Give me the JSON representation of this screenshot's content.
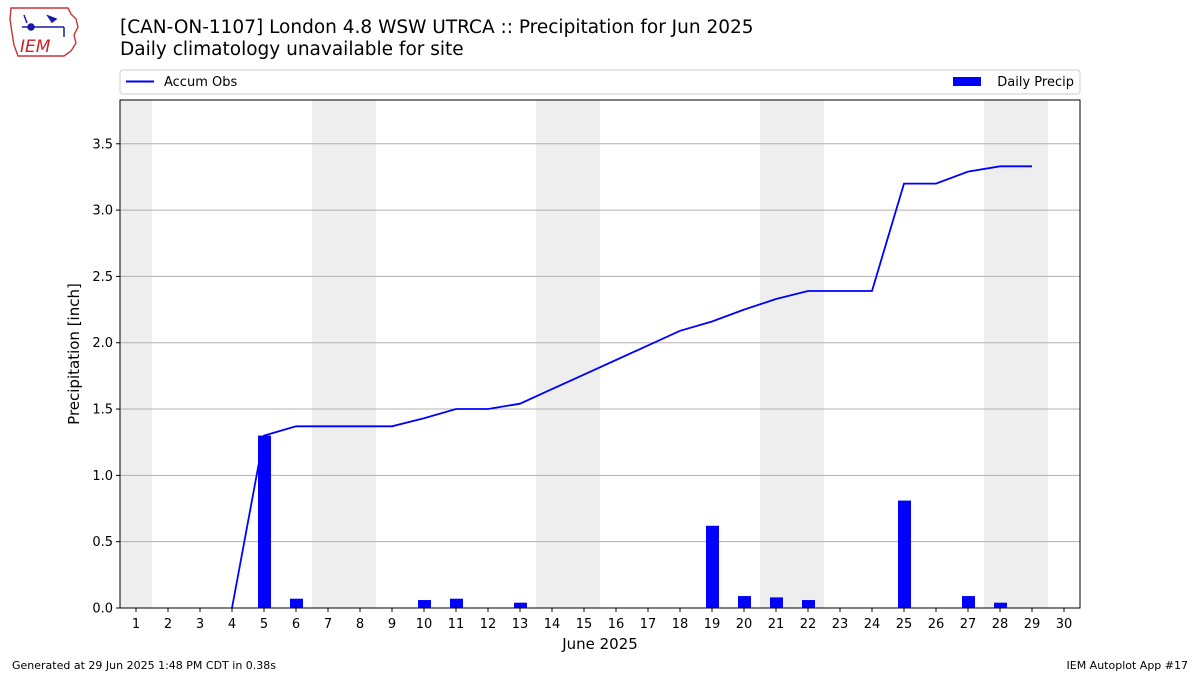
{
  "header": {
    "logo_text": "IEM",
    "title": "[CAN-ON-1107] London 4.8 WSW UTRCA :: Precipitation for Jun 2025",
    "subtitle": "Daily climatology unavailable for site"
  },
  "footer": {
    "generated": "Generated at 29 Jun 2025 1:48 PM CDT in 0.38s",
    "app": "IEM Autoplot App #17"
  },
  "colors": {
    "series": "#0000ff",
    "weekend_band": "#eeeeee",
    "grid": "#b0b0b0"
  },
  "chart_data": {
    "type": "bar",
    "xlabel": "June 2025",
    "ylabel": "Precipitation [inch]",
    "xlim": [
      0.5,
      30.5
    ],
    "ylim": [
      0,
      3.83
    ],
    "x_ticks": [
      1,
      2,
      3,
      4,
      5,
      6,
      7,
      8,
      9,
      10,
      11,
      12,
      13,
      14,
      15,
      16,
      17,
      18,
      19,
      20,
      21,
      22,
      23,
      24,
      25,
      26,
      27,
      28,
      29,
      30
    ],
    "y_ticks": [
      0,
      0.5,
      1,
      1.5,
      2,
      2.5,
      3,
      3.5
    ],
    "y_tick_labels": [
      "0.0",
      "0.5",
      "1.0",
      "1.5",
      "2.0",
      "2.5",
      "3.0",
      "3.5"
    ],
    "grid": "horizontal",
    "legend_position": "top, above plot",
    "weekend_days": [
      1,
      7,
      8,
      14,
      15,
      21,
      22,
      28,
      29
    ],
    "series": [
      {
        "name": "Accum Obs",
        "kind": "line",
        "days": [
          4,
          5,
          6,
          7,
          8,
          9,
          10,
          11,
          12,
          13,
          14,
          15,
          16,
          17,
          18,
          19,
          20,
          21,
          22,
          23,
          24,
          25,
          26,
          27,
          28,
          29
        ],
        "values": [
          0,
          1.3,
          1.37,
          1.37,
          1.37,
          1.37,
          1.43,
          1.5,
          1.5,
          1.54,
          1.65,
          1.76,
          1.87,
          1.98,
          2.09,
          2.16,
          2.25,
          2.33,
          2.39,
          2.39,
          2.39,
          3.2,
          3.2,
          3.29,
          3.33,
          3.33
        ]
      },
      {
        "name": "Daily Precip",
        "kind": "bar",
        "days": [
          5,
          6,
          10,
          11,
          13,
          19,
          20,
          21,
          22,
          25,
          27,
          28
        ],
        "values": [
          1.3,
          0.07,
          0.06,
          0.07,
          0.04,
          0.62,
          0.09,
          0.08,
          0.06,
          0.81,
          0.09,
          0.04
        ]
      }
    ]
  }
}
